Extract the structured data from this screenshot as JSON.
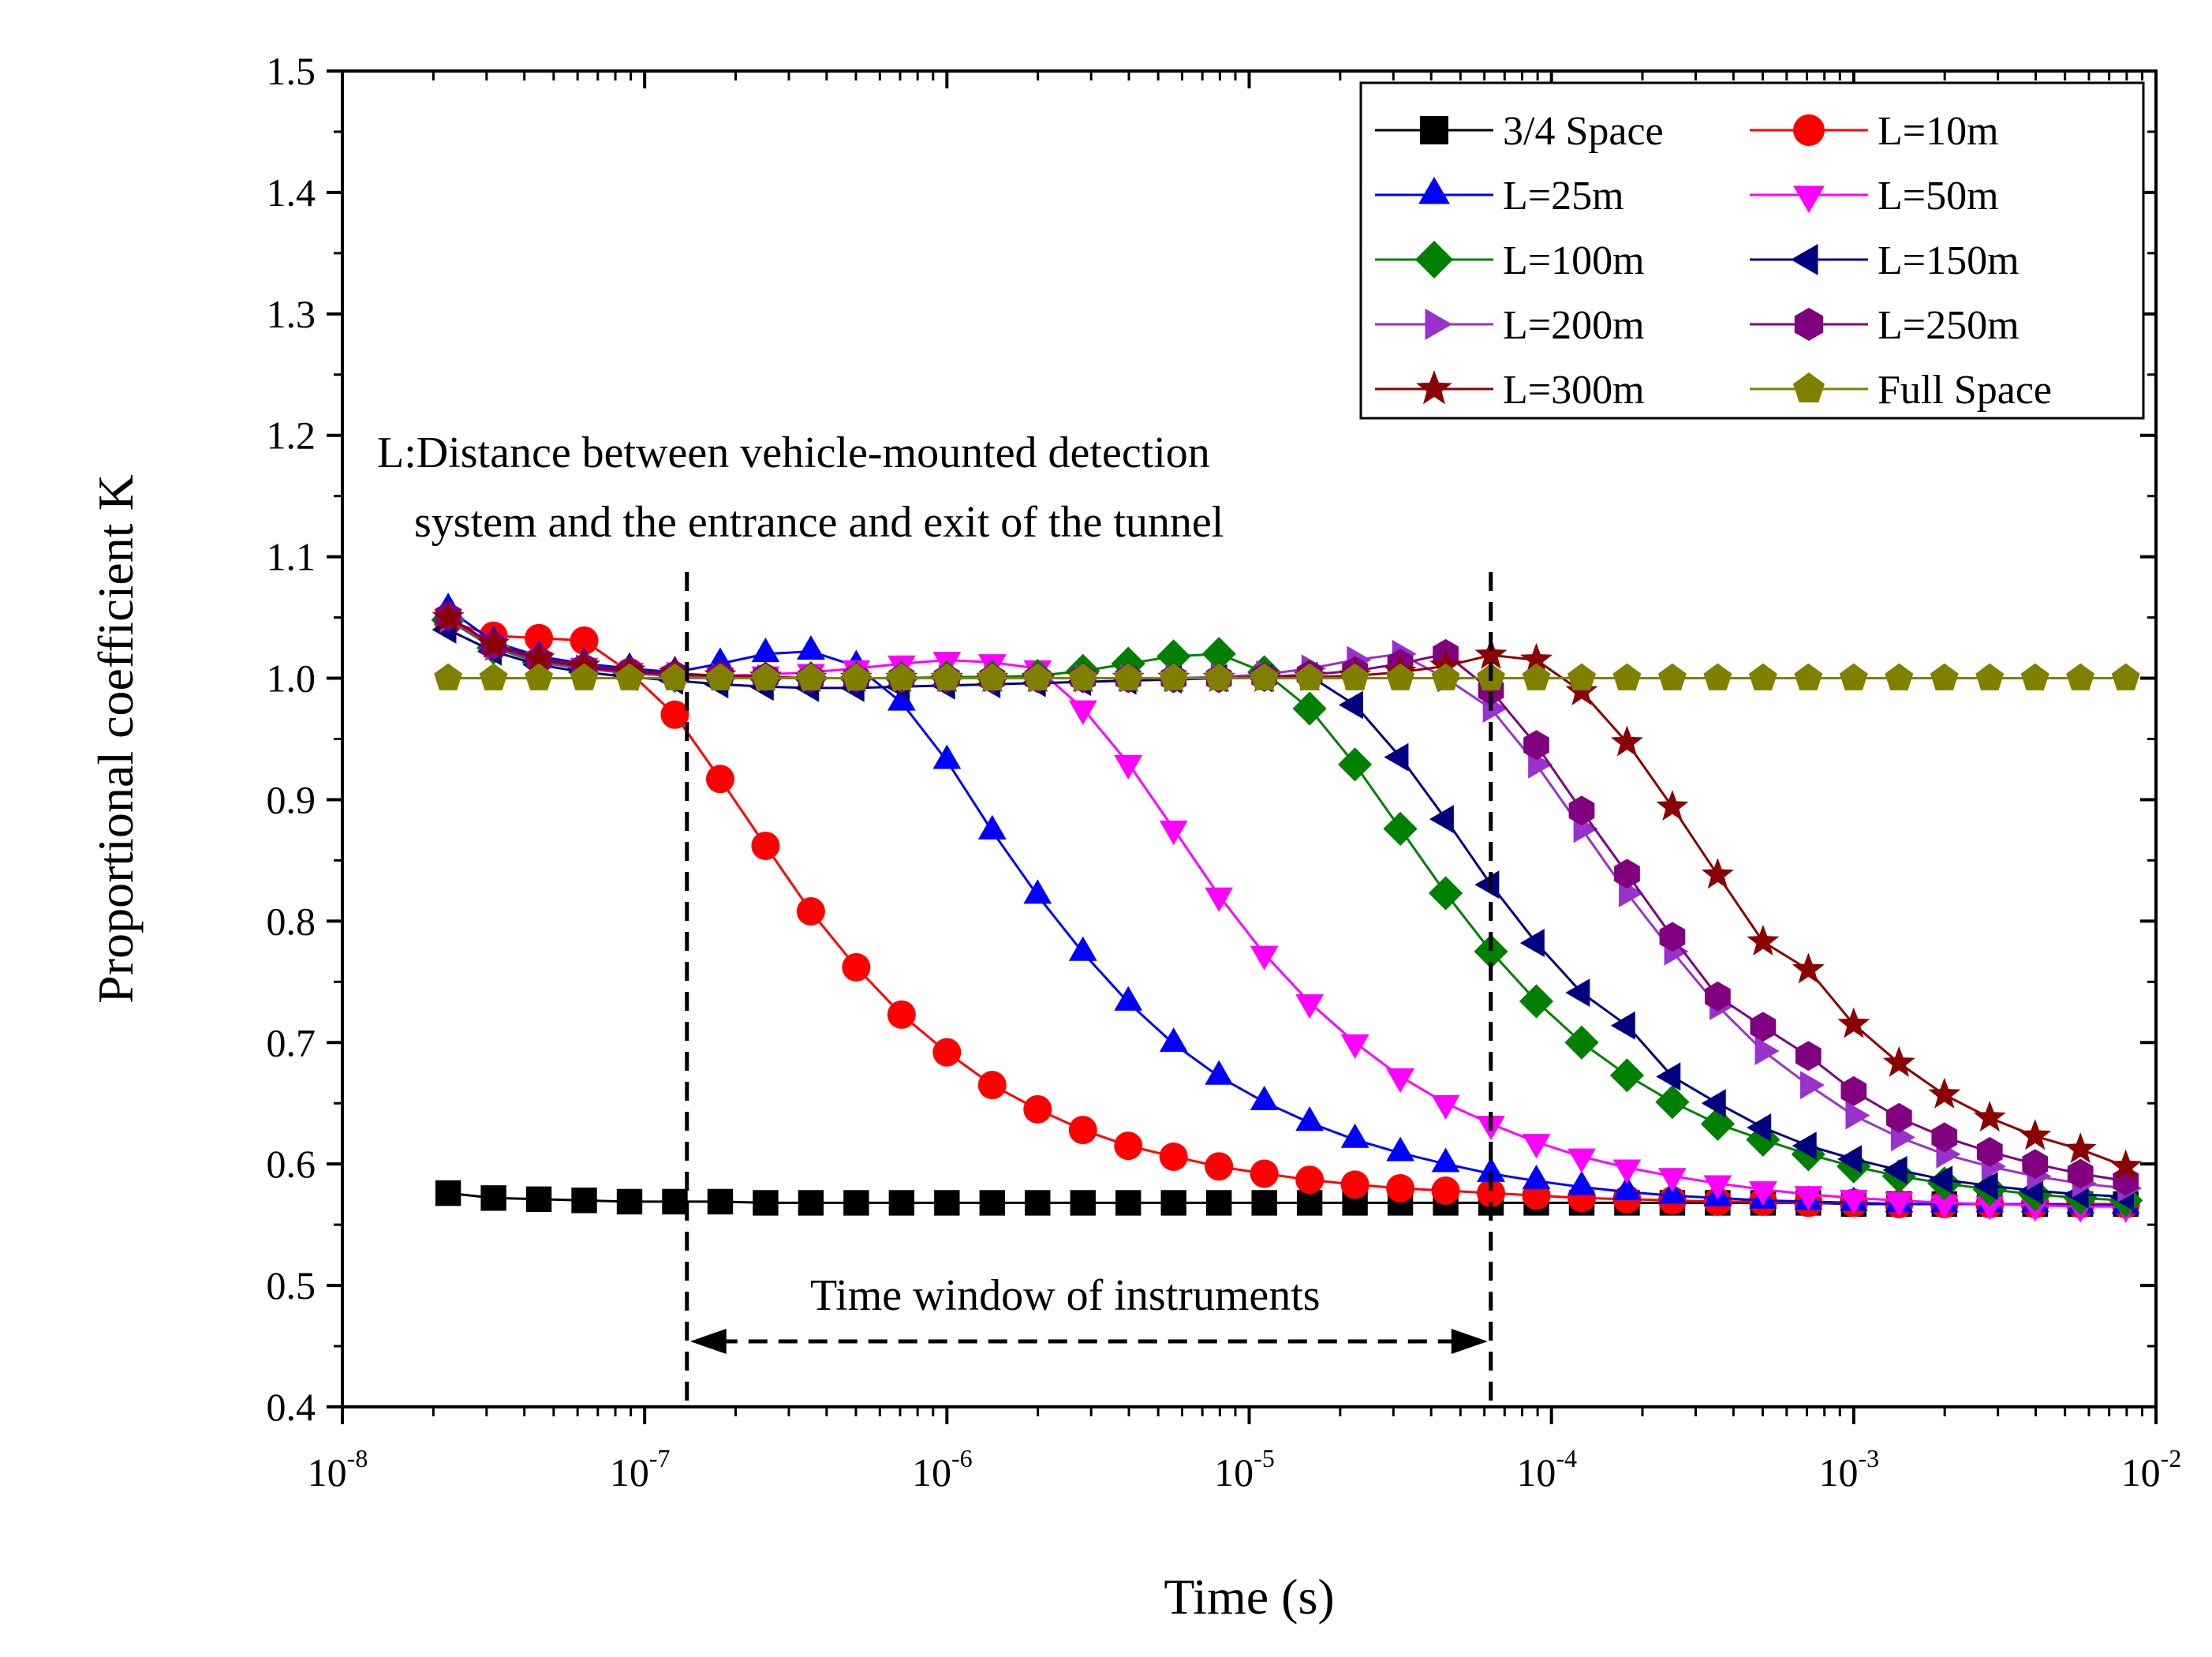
{
  "chart_data": {
    "type": "line",
    "title": "",
    "xlabel": "Time (s)",
    "ylabel": "Proportional coefficient K",
    "x_scale": "log",
    "xlim": [
      1e-08,
      0.01
    ],
    "ylim": [
      0.4,
      1.5
    ],
    "x_ticks": [
      {
        "base": "10",
        "exp": "-8",
        "value": 1e-08
      },
      {
        "base": "10",
        "exp": "-7",
        "value": 1e-07
      },
      {
        "base": "10",
        "exp": "-6",
        "value": 1e-06
      },
      {
        "base": "10",
        "exp": "-5",
        "value": 1e-05
      },
      {
        "base": "10",
        "exp": "-4",
        "value": 0.0001
      },
      {
        "base": "10",
        "exp": "-3",
        "value": 0.001
      },
      {
        "base": "10",
        "exp": "-2",
        "value": 0.01
      }
    ],
    "y_ticks": [
      "0.4",
      "0.5",
      "0.6",
      "0.7",
      "0.8",
      "0.9",
      "1.0",
      "1.1",
      "1.2",
      "1.3",
      "1.4",
      "1.5"
    ],
    "legend_position": "top-right",
    "x_exponents": [
      -7.65,
      -7.5,
      -7.35,
      -7.2,
      -7.05,
      -6.9,
      -6.75,
      -6.6,
      -6.45,
      -6.3,
      -6.15,
      -6.0,
      -5.85,
      -5.7,
      -5.55,
      -5.4,
      -5.25,
      -5.1,
      -4.95,
      -4.8,
      -4.65,
      -4.5,
      -4.35,
      -4.2,
      -4.05,
      -3.9,
      -3.75,
      -3.6,
      -3.45,
      -3.3,
      -3.15,
      -3.0,
      -2.85,
      -2.7,
      -2.55,
      -2.4,
      -2.25,
      -2.1
    ],
    "series": [
      {
        "name": "3/4 Space",
        "marker": "square",
        "color": "#000000",
        "values": [
          0.576,
          0.572,
          0.571,
          0.57,
          0.569,
          0.569,
          0.569,
          0.568,
          0.568,
          0.568,
          0.568,
          0.568,
          0.568,
          0.568,
          0.568,
          0.568,
          0.568,
          0.568,
          0.568,
          0.568,
          0.568,
          0.568,
          0.568,
          0.568,
          0.568,
          0.568,
          0.568,
          0.568,
          0.568,
          0.568,
          0.568,
          0.567,
          0.567,
          0.567,
          0.567,
          0.567,
          0.567,
          0.567
        ]
      },
      {
        "name": "L=10m",
        "marker": "circle",
        "color": "#ff0000",
        "values": [
          1.047,
          1.035,
          1.033,
          1.031,
          1.005,
          0.97,
          0.917,
          0.862,
          0.808,
          0.762,
          0.723,
          0.692,
          0.665,
          0.645,
          0.628,
          0.615,
          0.606,
          0.598,
          0.592,
          0.587,
          0.583,
          0.58,
          0.578,
          0.576,
          0.574,
          0.572,
          0.571,
          0.57,
          0.569,
          0.569,
          0.568,
          0.568,
          0.567,
          0.567,
          0.567,
          0.567,
          0.567,
          0.567
        ]
      },
      {
        "name": "L=25m",
        "marker": "triangle-up",
        "color": "#0000ff",
        "values": [
          1.057,
          1.03,
          1.018,
          1.012,
          1.008,
          1.005,
          1.012,
          1.02,
          1.022,
          1.01,
          0.98,
          0.932,
          0.874,
          0.821,
          0.774,
          0.733,
          0.699,
          0.672,
          0.651,
          0.634,
          0.62,
          0.609,
          0.6,
          0.592,
          0.586,
          0.581,
          0.577,
          0.574,
          0.572,
          0.57,
          0.569,
          0.568,
          0.567,
          0.567,
          0.567,
          0.567,
          0.566,
          0.566
        ]
      },
      {
        "name": "L=50m",
        "marker": "triangle-down",
        "color": "#ff00ff",
        "values": [
          1.05,
          1.028,
          1.015,
          1.01,
          1.006,
          1.003,
          1.002,
          1.003,
          1.005,
          1.008,
          1.012,
          1.015,
          1.013,
          1.008,
          0.975,
          0.93,
          0.876,
          0.821,
          0.773,
          0.733,
          0.7,
          0.672,
          0.65,
          0.633,
          0.618,
          0.606,
          0.597,
          0.59,
          0.584,
          0.579,
          0.575,
          0.572,
          0.57,
          0.568,
          0.567,
          0.566,
          0.565,
          0.565
        ]
      },
      {
        "name": "L=100m",
        "marker": "diamond",
        "color": "#008000",
        "values": [
          1.048,
          1.025,
          1.013,
          1.008,
          1.004,
          1.002,
          1.001,
          1.0,
          1.0,
          1.0,
          1.0,
          1.001,
          1.001,
          1.002,
          1.006,
          1.012,
          1.018,
          1.02,
          1.005,
          0.975,
          0.929,
          0.876,
          0.823,
          0.775,
          0.734,
          0.7,
          0.673,
          0.651,
          0.633,
          0.62,
          0.608,
          0.598,
          0.59,
          0.584,
          0.579,
          0.575,
          0.572,
          0.57
        ]
      },
      {
        "name": "L=150m",
        "marker": "triangle-left",
        "color": "#000080",
        "values": [
          1.04,
          1.022,
          1.011,
          1.005,
          1.001,
          0.998,
          0.995,
          0.993,
          0.992,
          0.992,
          0.993,
          0.994,
          0.995,
          0.996,
          0.997,
          0.998,
          0.999,
          1.0,
          1.0,
          1.002,
          0.978,
          0.935,
          0.884,
          0.83,
          0.782,
          0.741,
          0.714,
          0.672,
          0.65,
          0.63,
          0.615,
          0.604,
          0.595,
          0.587,
          0.582,
          0.578,
          0.575,
          0.573
        ]
      },
      {
        "name": "L=200m",
        "marker": "triangle-right",
        "color": "#9932cc",
        "values": [
          1.049,
          1.026,
          1.014,
          1.008,
          1.004,
          1.002,
          1.001,
          1.0,
          1.0,
          1.0,
          1.0,
          1.0,
          1.0,
          1.0,
          1.0,
          1.0,
          1.0,
          1.001,
          1.003,
          1.008,
          1.015,
          1.02,
          1.0,
          0.975,
          0.929,
          0.876,
          0.823,
          0.775,
          0.73,
          0.693,
          0.665,
          0.64,
          0.622,
          0.608,
          0.598,
          0.59,
          0.584,
          0.58
        ]
      },
      {
        "name": "L=250m",
        "marker": "hexagon",
        "color": "#800080",
        "values": [
          1.051,
          1.027,
          1.015,
          1.009,
          1.005,
          1.003,
          1.002,
          1.001,
          1.0,
          1.0,
          1.0,
          1.0,
          1.0,
          1.0,
          1.0,
          1.0,
          1.0,
          1.0,
          1.001,
          1.003,
          1.006,
          1.012,
          1.02,
          0.99,
          0.945,
          0.891,
          0.839,
          0.787,
          0.738,
          0.713,
          0.689,
          0.66,
          0.638,
          0.622,
          0.61,
          0.6,
          0.592,
          0.586
        ]
      },
      {
        "name": "L=300m",
        "marker": "star",
        "color": "#8b0000",
        "values": [
          1.05,
          1.028,
          1.016,
          1.01,
          1.006,
          1.004,
          1.002,
          1.001,
          1.0,
          1.0,
          1.0,
          1.0,
          1.0,
          1.0,
          1.0,
          1.0,
          1.0,
          1.0,
          1.0,
          1.001,
          1.002,
          1.005,
          1.01,
          1.019,
          1.015,
          0.989,
          0.947,
          0.894,
          0.838,
          0.783,
          0.76,
          0.715,
          0.683,
          0.657,
          0.638,
          0.623,
          0.612,
          0.598
        ]
      },
      {
        "name": "Full Space",
        "marker": "pentagon",
        "color": "#808000",
        "values": [
          1.0,
          1.0,
          1.0,
          1.0,
          1.0,
          1.0,
          1.0,
          1.0,
          1.0,
          1.0,
          1.0,
          1.0,
          1.0,
          1.0,
          1.0,
          1.0,
          1.0,
          1.0,
          1.0,
          1.0,
          1.0,
          1.0,
          1.0,
          1.0,
          1.0,
          1.0,
          1.0,
          1.0,
          1.0,
          1.0,
          1.0,
          1.0,
          1.0,
          1.0,
          1.0,
          1.0,
          1.0,
          1.0
        ]
      }
    ],
    "annotations": {
      "distance_note_line1": "L:Distance between vehicle-mounted detection",
      "distance_note_line2": "system and the entrance and exit of the tunnel",
      "time_window_label": "Time window of  instruments",
      "time_window_start": 1.38e-07,
      "time_window_end": 6.3e-05
    }
  }
}
